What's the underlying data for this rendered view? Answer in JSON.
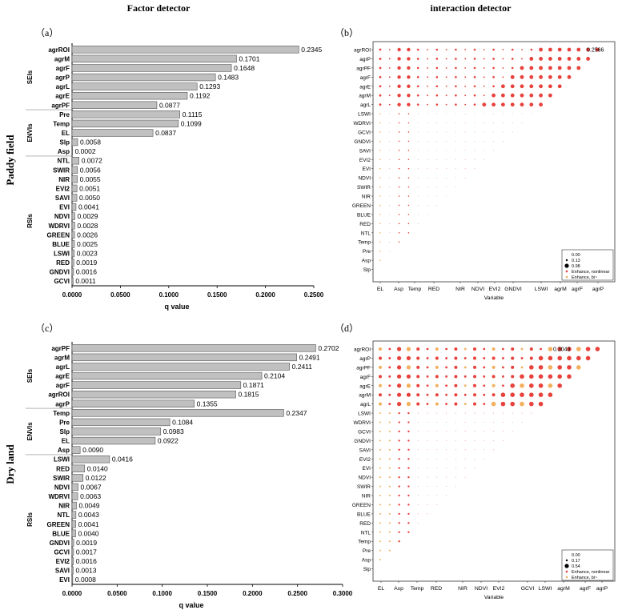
{
  "headers": {
    "left": "Factor detector",
    "right": "interaction detector"
  },
  "row_labels": [
    "Paddy field",
    "Dry land"
  ],
  "panel_tags": [
    "（a）",
    "（b）",
    "（c）",
    "（d）"
  ],
  "group_labels": {
    "sei": "SEIs",
    "env": "ENVIs",
    "rsi": "RSIs"
  },
  "chart_data": [
    {
      "type": "bar",
      "orientation": "horizontal",
      "panel": "a",
      "xlabel": "q value",
      "xlim": [
        0,
        0.25
      ],
      "xticks": [
        "0.0000",
        "0.0500",
        "0.1000",
        "0.1500",
        "0.2000",
        "0.2500"
      ],
      "categories": [
        "agrROI",
        "agrM",
        "agrF",
        "agrP",
        "agrL",
        "agrE",
        "agrPF",
        "Pre",
        "Temp",
        "EL",
        "Slp",
        "Asp",
        "NTL",
        "SWIR",
        "NIR",
        "EVI2",
        "SAVI",
        "EVI",
        "NDVI",
        "WDRVI",
        "GREEN",
        "BLUE",
        "LSWI",
        "RED",
        "GNDVI",
        "GCVI"
      ],
      "values": [
        0.2345,
        0.1701,
        0.1648,
        0.1483,
        0.1293,
        0.1192,
        0.0877,
        0.1115,
        0.1099,
        0.0837,
        0.0058,
        0.0002,
        0.0072,
        0.0056,
        0.0055,
        0.0051,
        0.005,
        0.0041,
        0.0029,
        0.0028,
        0.0026,
        0.0025,
        0.0023,
        0.0019,
        0.0016,
        0.0011
      ],
      "value_labels": [
        "0.2345",
        "0.1701",
        "0.1648",
        "0.1483",
        "0.1293",
        "0.1192",
        "0.0877",
        "0.1115",
        "0.1099",
        "0.0837",
        "0.0058",
        "0.0002",
        "0.0072",
        "0.0056",
        "0.0055",
        "0.0051",
        "0.0050",
        "0.0041",
        "0.0029",
        "0.0028",
        "0.0026",
        "0.0025",
        "0.0023",
        "0.0019",
        "0.0016",
        "0.0011"
      ],
      "groups": [
        {
          "name": "SEIs",
          "count": 7
        },
        {
          "name": "ENVIs",
          "count": 5
        },
        {
          "name": "RSIs",
          "count": 14
        }
      ],
      "bar_color": "#c0c0c0"
    },
    {
      "type": "scatter",
      "subtype": "triangular-bubble-matrix",
      "panel": "b",
      "xlabel": "Variable",
      "x_ticks": [
        "EL",
        "Asp",
        "Temp",
        "RED",
        "NIR",
        "NDVI",
        "EVI2",
        "GNDVI",
        "LSWI",
        "agrM",
        "agrF",
        "agrP"
      ],
      "y_categories": [
        "agrROI",
        "agrP",
        "agrPF",
        "agrF",
        "agrE",
        "agrM",
        "agrL",
        "LSWI",
        "WDRVI",
        "GCVI",
        "GNDVI",
        "SAVI",
        "EVI2",
        "EVI",
        "NDVI",
        "SWIR",
        "NIR",
        "GREEN",
        "BLUE",
        "RED",
        "NTL",
        "Temp",
        "Pre",
        "Asp",
        "Slp"
      ],
      "max_label": "0.2566",
      "legend": {
        "position": "bottom-right",
        "sizes": [
          "0.00",
          "0.13",
          "0.98"
        ],
        "types": [
          "Enhance, nonlinear",
          "Enhance, bi~"
        ]
      },
      "colors": {
        "nonlinear": "#e8423c",
        "bi": "#f2b05e"
      }
    },
    {
      "type": "bar",
      "orientation": "horizontal",
      "panel": "c",
      "xlabel": "q value",
      "xlim": [
        0,
        0.3
      ],
      "xticks": [
        "0.0000",
        "0.0500",
        "0.1000",
        "0.1500",
        "0.2000",
        "0.2500",
        "0.3000"
      ],
      "categories": [
        "agrPF",
        "agrM",
        "agrL",
        "agrE",
        "agrF",
        "agrROI",
        "agrP",
        "Temp",
        "Pre",
        "Slp",
        "EL",
        "Asp",
        "LSWI",
        "RED",
        "SWIR",
        "NDVI",
        "WDRVI",
        "NIR",
        "NTL",
        "GREEN",
        "BLUE",
        "GNDVI",
        "GCVI",
        "EVI2",
        "SAVI",
        "EVI"
      ],
      "values": [
        0.2702,
        0.2491,
        0.2411,
        0.2104,
        0.1871,
        0.1815,
        0.1355,
        0.2347,
        0.1084,
        0.0983,
        0.0922,
        0.009,
        0.0416,
        0.014,
        0.0122,
        0.0067,
        0.0063,
        0.0049,
        0.0043,
        0.0041,
        0.004,
        0.0019,
        0.0017,
        0.0016,
        0.0013,
        0.0008
      ],
      "value_labels": [
        "0.2702",
        "0.2491",
        "0.2411",
        "0.2104",
        "0.1871",
        "0.1815",
        "0.1355",
        "0.2347",
        "0.1084",
        "0.0983",
        "0.0922",
        "0.0090",
        "0.0416",
        "0.0140",
        "0.0122",
        "0.0067",
        "0.0063",
        "0.0049",
        "0.0043",
        "0.0041",
        "0.0040",
        "0.0019",
        "0.0017",
        "0.0016",
        "0.0013",
        "0.0008"
      ],
      "groups": [
        {
          "name": "SEIs",
          "count": 7
        },
        {
          "name": "ENVIs",
          "count": 5
        },
        {
          "name": "RSIs",
          "count": 14
        }
      ],
      "bar_color": "#c0c0c0"
    },
    {
      "type": "scatter",
      "subtype": "triangular-bubble-matrix",
      "panel": "d",
      "xlabel": "Variable",
      "x_ticks": [
        "EL",
        "Asp",
        "Temp",
        "RED",
        "NIR",
        "NDVI",
        "EVI2",
        "GCVI",
        "LSWI",
        "agrM",
        "agrF",
        "agrP"
      ],
      "y_categories": [
        "agrROI",
        "agrP",
        "agrPF",
        "agrF",
        "agrE",
        "agrM",
        "agrL",
        "LSWI",
        "WDRVI",
        "GCVI",
        "GNDVI",
        "SAVI",
        "EVI2",
        "EVI",
        "NDVI",
        "SWIR",
        "NIR",
        "GREEN",
        "BLUE",
        "RED",
        "NTL",
        "Temp",
        "Pre",
        "Asp",
        "Slp"
      ],
      "max_label": "0.3043",
      "legend": {
        "position": "bottom-right",
        "sizes": [
          "0.00",
          "0.17",
          "0.54"
        ],
        "types": [
          "Enhance, nonlinear",
          "Enhance, bi~"
        ]
      },
      "colors": {
        "nonlinear": "#e8423c",
        "bi": "#f2b05e"
      }
    }
  ]
}
